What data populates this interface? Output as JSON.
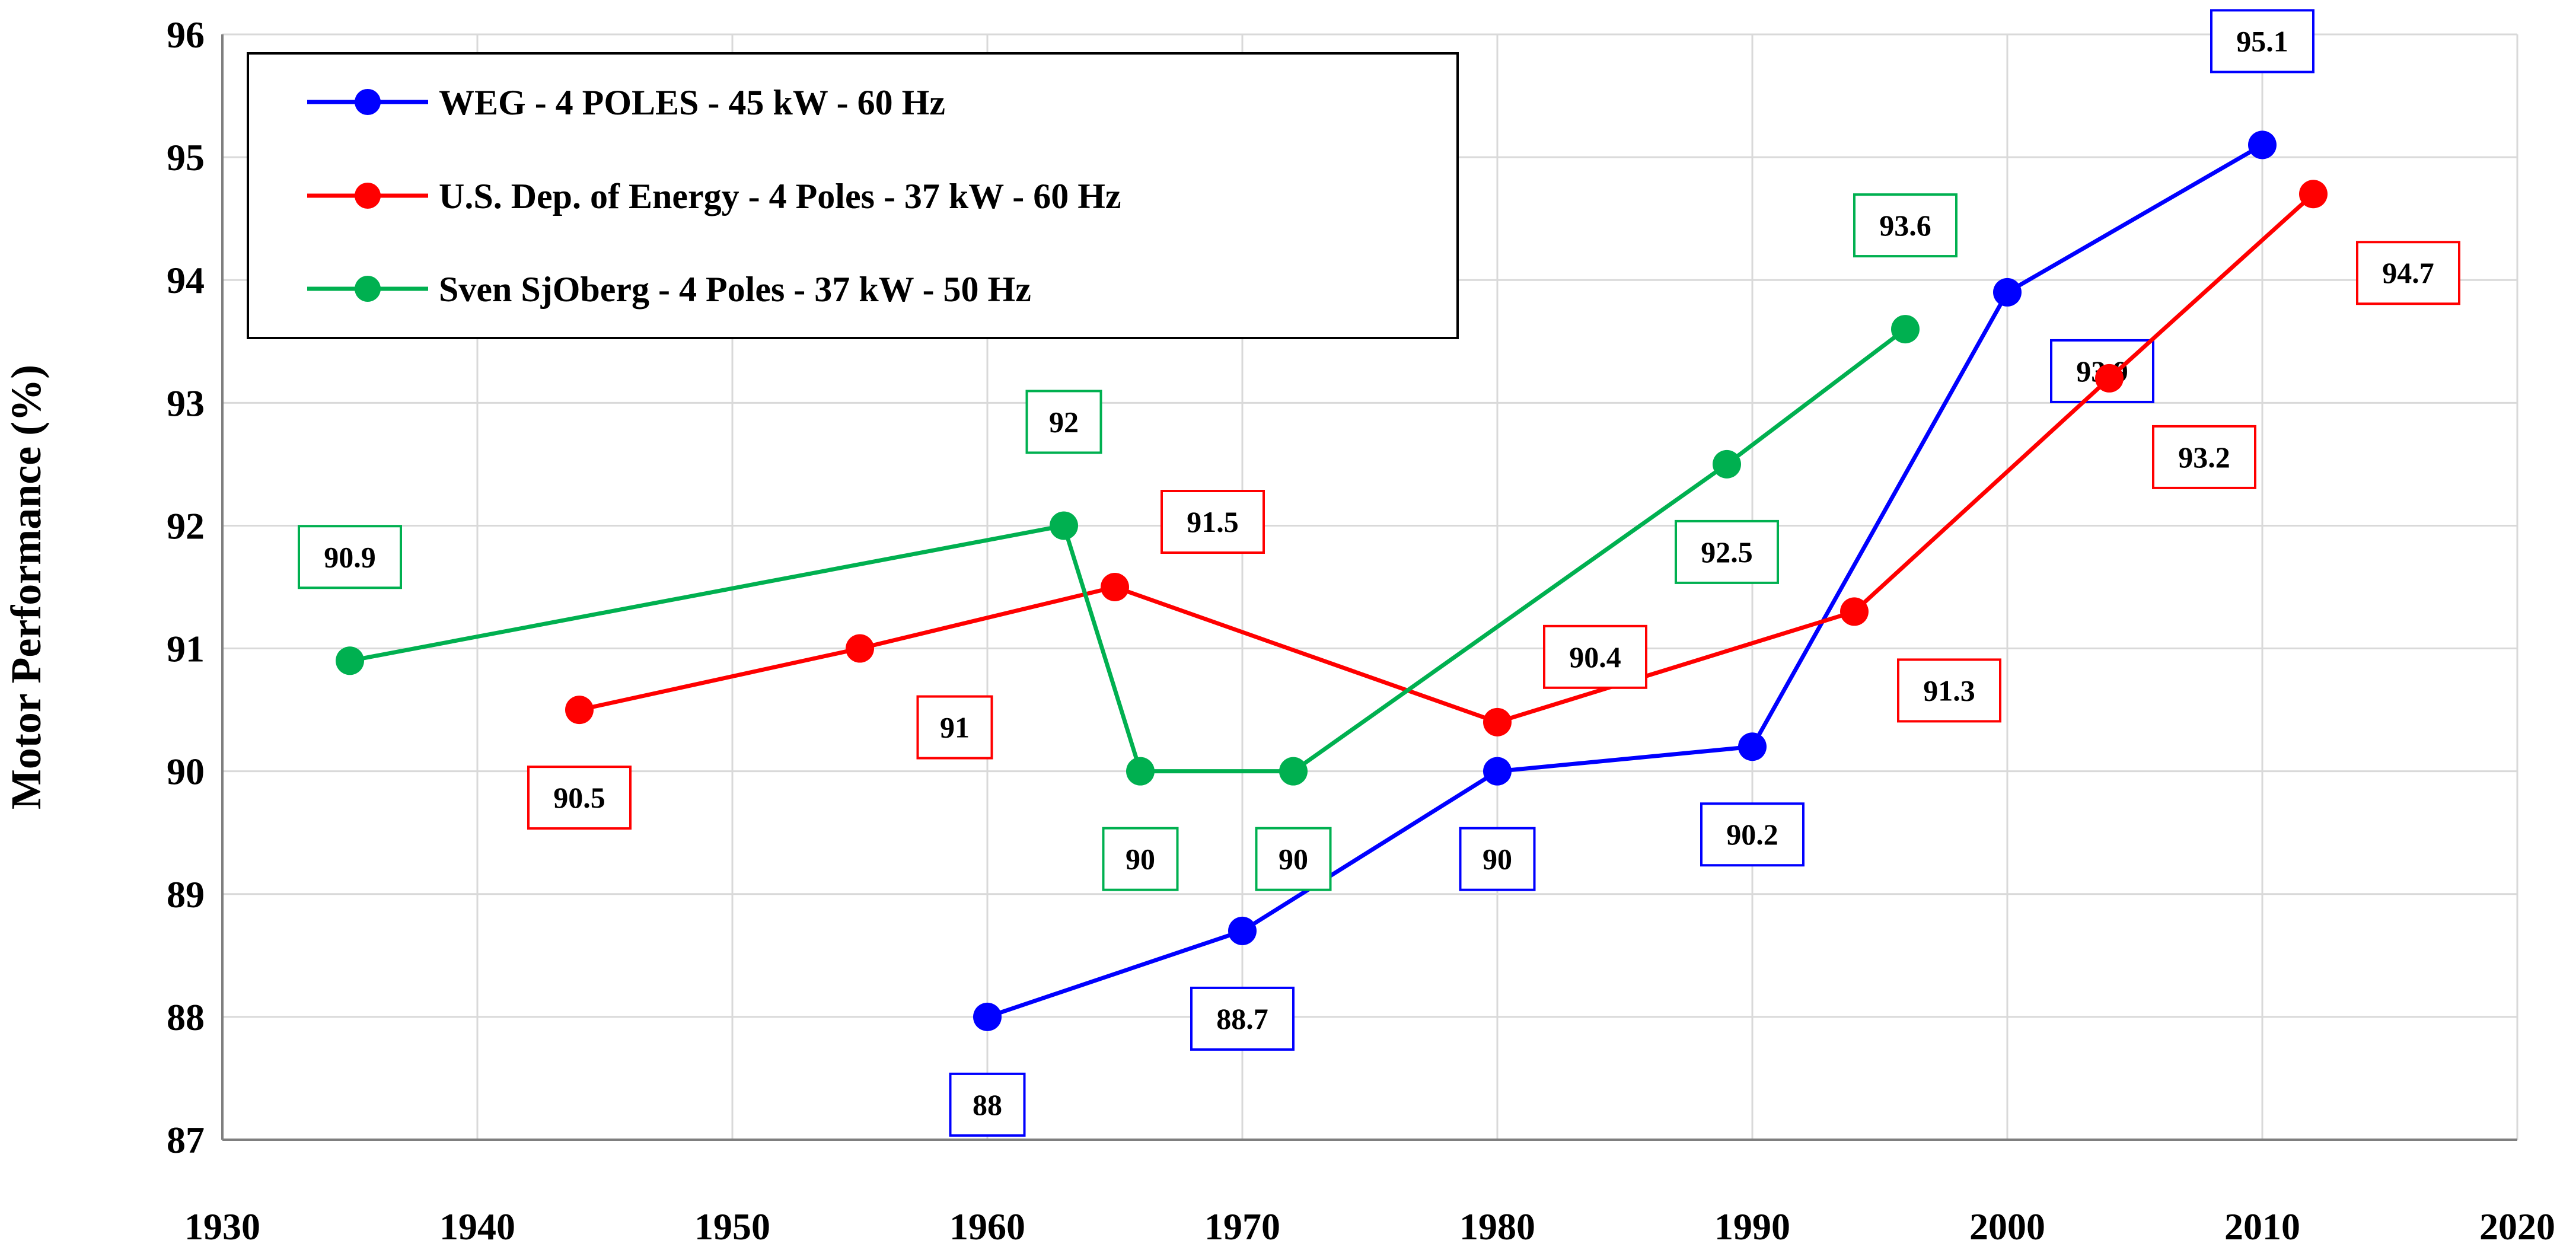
{
  "chart_data": {
    "type": "line",
    "title": "",
    "xlabel": "",
    "ylabel": "Motor Performance (%)",
    "xlim": [
      1930,
      2020
    ],
    "ylim": [
      87,
      96
    ],
    "xticks": [
      1930,
      1940,
      1950,
      1960,
      1970,
      1980,
      1990,
      2000,
      2010,
      2020
    ],
    "yticks": [
      87,
      88,
      89,
      90,
      91,
      92,
      93,
      94,
      95,
      96
    ],
    "grid": true,
    "legend_position": "top-left",
    "series": [
      {
        "name": "WEG - 4 POLES - 45 kW - 60 Hz",
        "color": "#0000FF",
        "points": [
          {
            "x": 1960,
            "y": 88,
            "label": "88",
            "pos": "below"
          },
          {
            "x": 1970,
            "y": 88.7,
            "label": "88.7",
            "pos": "below"
          },
          {
            "x": 1980,
            "y": 90,
            "label": "90",
            "pos": "below"
          },
          {
            "x": 1990,
            "y": 90.2,
            "label": "90.2",
            "pos": "below"
          },
          {
            "x": 2000,
            "y": 93.9,
            "label": "93.9",
            "pos": "below-right"
          },
          {
            "x": 2010,
            "y": 95.1,
            "label": "95.1",
            "pos": "above"
          }
        ]
      },
      {
        "name": "U.S. Dep. of Energy - 4 Poles - 37 kW - 60 Hz",
        "color": "#FF0000",
        "points": [
          {
            "x": 1944,
            "y": 90.5,
            "label": "90.5",
            "pos": "below"
          },
          {
            "x": 1955,
            "y": 91,
            "label": "91",
            "pos": "below-right"
          },
          {
            "x": 1965,
            "y": 91.5,
            "label": "91.5",
            "pos": "above-right"
          },
          {
            "x": 1980,
            "y": 90.4,
            "label": "90.4",
            "pos": "above-right"
          },
          {
            "x": 1994,
            "y": 91.3,
            "label": "91.3",
            "pos": "below-right"
          },
          {
            "x": 2004,
            "y": 93.2,
            "label": "93.2",
            "pos": "below-right"
          },
          {
            "x": 2012,
            "y": 94.7,
            "label": "94.7",
            "pos": "below-right"
          }
        ]
      },
      {
        "name": "Sven SjOberg - 4 Poles - 37 kW - 50 Hz",
        "color": "#00B050",
        "points": [
          {
            "x": 1935,
            "y": 90.9,
            "label": "90.9",
            "pos": "above"
          },
          {
            "x": 1963,
            "y": 92,
            "label": "92",
            "pos": "above"
          },
          {
            "x": 1966,
            "y": 90,
            "label": "90",
            "pos": "below"
          },
          {
            "x": 1972,
            "y": 90,
            "label": "90",
            "pos": "below"
          },
          {
            "x": 1989,
            "y": 92.5,
            "label": "92.5",
            "pos": "below"
          },
          {
            "x": 1996,
            "y": 93.6,
            "label": "93.6",
            "pos": "above"
          }
        ]
      }
    ]
  }
}
